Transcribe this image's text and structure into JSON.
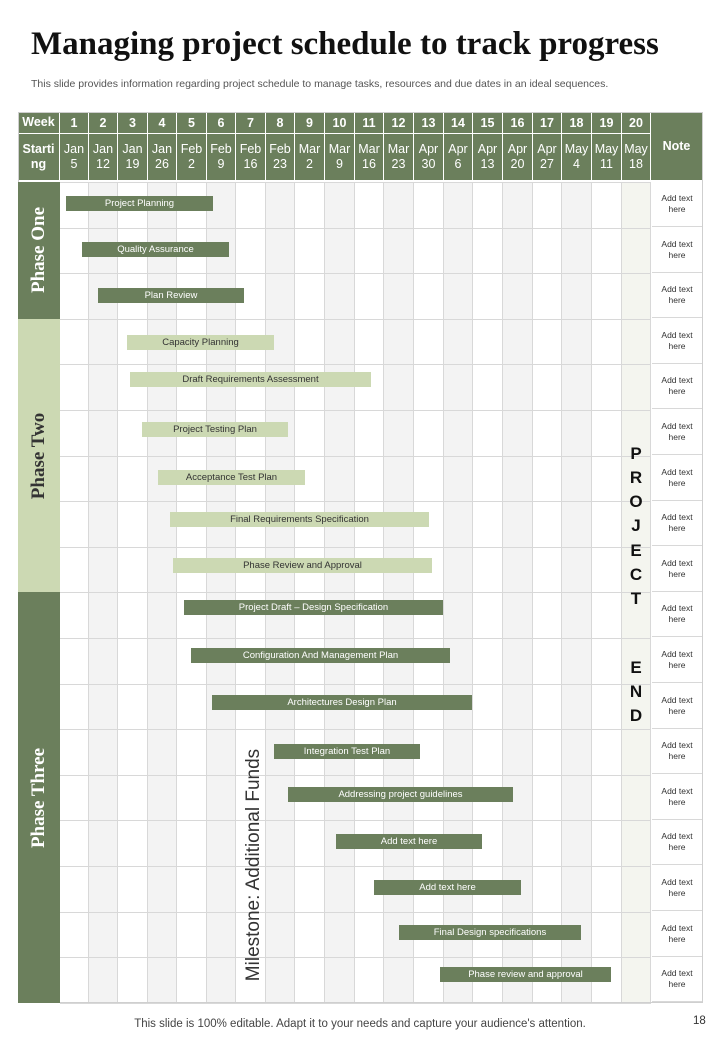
{
  "title": "Managing project schedule to track progress",
  "subtitle": "This slide provides information regarding project schedule to manage tasks, resources and due dates in an ideal sequences.",
  "footer": "This slide is 100% editable. Adapt it to your needs and capture your audience's attention.",
  "page_number": "18",
  "header": {
    "week_label": "Week",
    "starting_label_line1": "Starti",
    "starting_label_line2": "ng",
    "note_label": "Note"
  },
  "weeks": [
    {
      "num": "1",
      "l1": "Jan",
      "l2": "5"
    },
    {
      "num": "2",
      "l1": "Jan",
      "l2": "12"
    },
    {
      "num": "3",
      "l1": "Jan",
      "l2": "19"
    },
    {
      "num": "4",
      "l1": "Jan",
      "l2": "26"
    },
    {
      "num": "5",
      "l1": "Feb",
      "l2": "2"
    },
    {
      "num": "6",
      "l1": "Feb",
      "l2": "9"
    },
    {
      "num": "7",
      "l1": "Feb",
      "l2": "16"
    },
    {
      "num": "8",
      "l1": "Feb",
      "l2": "23"
    },
    {
      "num": "9",
      "l1": "Mar",
      "l2": "2"
    },
    {
      "num": "10",
      "l1": "Mar",
      "l2": "9"
    },
    {
      "num": "11",
      "l1": "Mar",
      "l2": "16"
    },
    {
      "num": "12",
      "l1": "Mar",
      "l2": "23"
    },
    {
      "num": "13",
      "l1": "Apr",
      "l2": "30"
    },
    {
      "num": "14",
      "l1": "Apr",
      "l2": "6"
    },
    {
      "num": "15",
      "l1": "Apr",
      "l2": "13"
    },
    {
      "num": "16",
      "l1": "Apr",
      "l2": "20"
    },
    {
      "num": "17",
      "l1": "Apr",
      "l2": "27"
    },
    {
      "num": "18",
      "l1": "May",
      "l2": "4"
    },
    {
      "num": "19",
      "l1": "May",
      "l2": "11"
    },
    {
      "num": "20",
      "l1": "May",
      "l2": "18"
    }
  ],
  "phases": [
    {
      "label": "Phase One"
    },
    {
      "label": "Phase Two"
    },
    {
      "label": "Phase Three"
    }
  ],
  "tasks": [
    {
      "label": "Project Planning",
      "style": "dark",
      "phase": 0
    },
    {
      "label": "Quality Assurance",
      "style": "dark",
      "phase": 0
    },
    {
      "label": "Plan Review",
      "style": "dark",
      "phase": 0
    },
    {
      "label": "Capacity Planning",
      "style": "light",
      "phase": 1
    },
    {
      "label": "Draft Requirements  Assessment",
      "style": "light",
      "phase": 1
    },
    {
      "label": "Project Testing Plan",
      "style": "light",
      "phase": 1
    },
    {
      "label": "Acceptance Test Plan",
      "style": "light",
      "phase": 1
    },
    {
      "label": "Final Requirements  Specification",
      "style": "light",
      "phase": 1
    },
    {
      "label": "Phase Review and Approval",
      "style": "light",
      "phase": 1
    },
    {
      "label": "Project  Draft – Design Specification",
      "style": "dark",
      "phase": 2
    },
    {
      "label": "Configuration And Management  Plan",
      "style": "dark",
      "phase": 2
    },
    {
      "label": "Architectures Design Plan",
      "style": "dark",
      "phase": 2
    },
    {
      "label": "Integration Test Plan",
      "style": "dark",
      "phase": 2
    },
    {
      "label": "Addressing project guidelines",
      "style": "dark",
      "phase": 2
    },
    {
      "label": "Add text here",
      "style": "dark",
      "phase": 2
    },
    {
      "label": "Add text here",
      "style": "dark",
      "phase": 2
    },
    {
      "label": "Final Design specifications",
      "style": "dark",
      "phase": 2
    },
    {
      "label": "Phase review and approval",
      "style": "dark",
      "phase": 2
    }
  ],
  "note_text": "Add text here",
  "project_end_letters": [
    "P",
    "R",
    "O",
    "J",
    "E",
    "C",
    "T",
    "E",
    "N",
    "D"
  ],
  "milestone_label": "Milestone: Additional Funds",
  "colors": {
    "dark_green": "#6b7f5c",
    "light_green": "#ccd9b3",
    "end_column": "#f4f5ef"
  }
}
